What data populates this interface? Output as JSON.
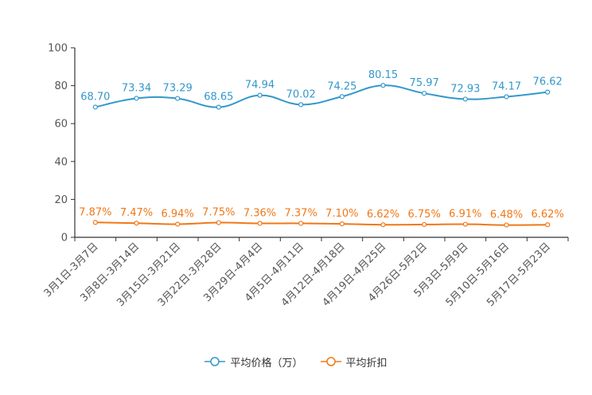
{
  "chart_data": {
    "type": "line",
    "categories": [
      "3月1日-3月7日",
      "3月8日-3月14日",
      "3月15日-3月21日",
      "3月22日-3月28日",
      "3月29日-4月4日",
      "4月5日-4月11日",
      "4月12日-4月18日",
      "4月19日-4月25日",
      "4月26日-5月2日",
      "5月3日-5月9日",
      "5月10日-5月16日",
      "5月17日-5月23日"
    ],
    "series": [
      {
        "name": "平均价格（万）",
        "color": "#3398cc",
        "values": [
          68.7,
          73.34,
          73.29,
          68.65,
          74.94,
          70.02,
          74.25,
          80.15,
          75.97,
          72.93,
          74.17,
          76.62
        ],
        "labels": [
          "68.70",
          "73.34",
          "73.29",
          "68.65",
          "74.94",
          "70.02",
          "74.25",
          "80.15",
          "75.97",
          "72.93",
          "74.17",
          "76.62"
        ]
      },
      {
        "name": "平均折扣",
        "color": "#f07818",
        "values": [
          7.87,
          7.47,
          6.94,
          7.75,
          7.36,
          7.37,
          7.1,
          6.62,
          6.75,
          6.91,
          6.48,
          6.62
        ],
        "labels": [
          "7.87%",
          "7.47%",
          "6.94%",
          "7.75%",
          "7.36%",
          "7.37%",
          "7.10%",
          "6.62%",
          "6.75%",
          "6.91%",
          "6.48%",
          "6.62%"
        ]
      }
    ],
    "ylim": [
      0,
      100
    ],
    "yticks": [
      "0",
      "20",
      "40",
      "60",
      "80",
      "100"
    ],
    "legend_position": "bottom-center",
    "grid": false
  }
}
